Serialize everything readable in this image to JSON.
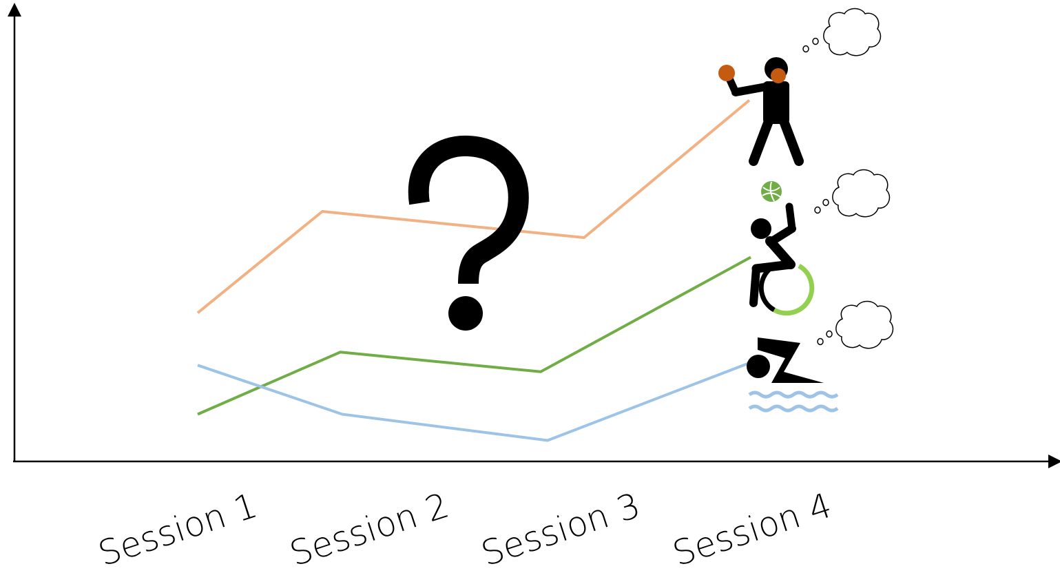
{
  "chart_data": {
    "type": "line",
    "categories": [
      "Session 1",
      "Session 2",
      "Session 3",
      "Session 4"
    ],
    "series": [
      {
        "values": [
          4.5,
          7.6,
          6.8,
          11.0
        ],
        "color": "#f2b183",
        "icon": "boxer-icon"
      },
      {
        "values": [
          1.4,
          3.3,
          2.7,
          6.2
        ],
        "color": "#70ad47",
        "icon": "wheelchair-volleyball-icon"
      },
      {
        "values": [
          2.9,
          1.4,
          0.6,
          3.0
        ],
        "color": "#9dc3e6",
        "icon": "swimmer-icon"
      }
    ],
    "annotations": {
      "center_symbol": "?"
    },
    "axes": {
      "y_arrow": true,
      "x_arrow": true,
      "grid": false,
      "legend": "none"
    }
  }
}
